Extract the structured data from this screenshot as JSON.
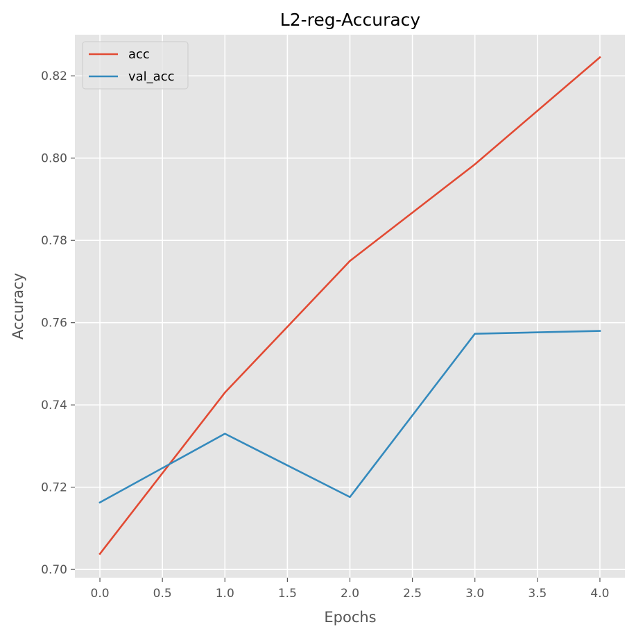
{
  "chart_data": {
    "type": "line",
    "title": "L2-reg-Accuracy",
    "xlabel": "Epochs",
    "ylabel": "Accuracy",
    "xlim": [
      -0.2,
      4.2
    ],
    "ylim": [
      0.698,
      0.83
    ],
    "x_ticks": [
      0.0,
      0.5,
      1.0,
      1.5,
      2.0,
      2.5,
      3.0,
      3.5,
      4.0
    ],
    "x_tick_labels": [
      "0.0",
      "0.5",
      "1.0",
      "1.5",
      "2.0",
      "2.5",
      "3.0",
      "3.5",
      "4.0"
    ],
    "y_ticks": [
      0.7,
      0.72,
      0.74,
      0.76,
      0.78,
      0.8,
      0.82
    ],
    "y_tick_labels": [
      "0.70",
      "0.72",
      "0.74",
      "0.76",
      "0.78",
      "0.80",
      "0.82"
    ],
    "grid": true,
    "legend_position": "top-left",
    "x": [
      0,
      1,
      2,
      3,
      4
    ],
    "series": [
      {
        "name": "acc",
        "color": "#E24A33",
        "values": [
          0.7038,
          0.743,
          0.775,
          0.7985,
          0.8245
        ]
      },
      {
        "name": "val_acc",
        "color": "#348ABD",
        "values": [
          0.7163,
          0.733,
          0.7176,
          0.7573,
          0.758
        ]
      }
    ]
  }
}
